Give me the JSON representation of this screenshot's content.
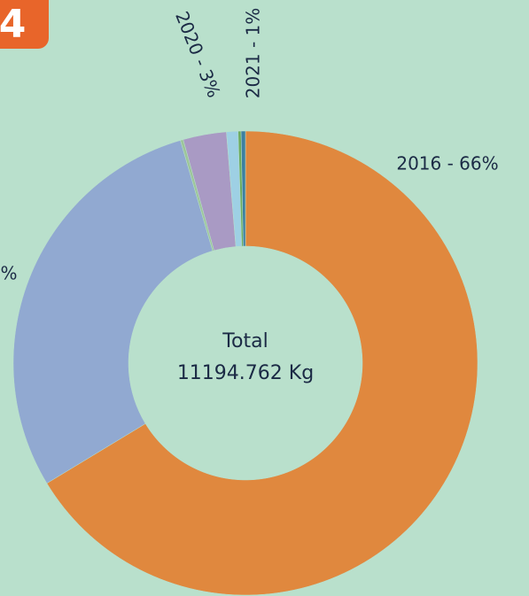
{
  "chart_data": {
    "type": "donut",
    "badge": "4",
    "center_text": [
      "Total",
      "11194.762 Kg"
    ],
    "values": [
      66,
      29,
      0.2,
      3,
      0.8,
      0.2,
      0.3
    ],
    "value_labels": [
      "2016 - 66%",
      "%",
      null,
      "2020 - 3%",
      "2021 - 1%",
      null,
      null
    ],
    "colors": [
      "#e0883e",
      "#91a9d1",
      "#9dc59a",
      "#a99ac4",
      "#9ed0e4",
      "#6aaa60",
      "#3d7fa0"
    ]
  }
}
